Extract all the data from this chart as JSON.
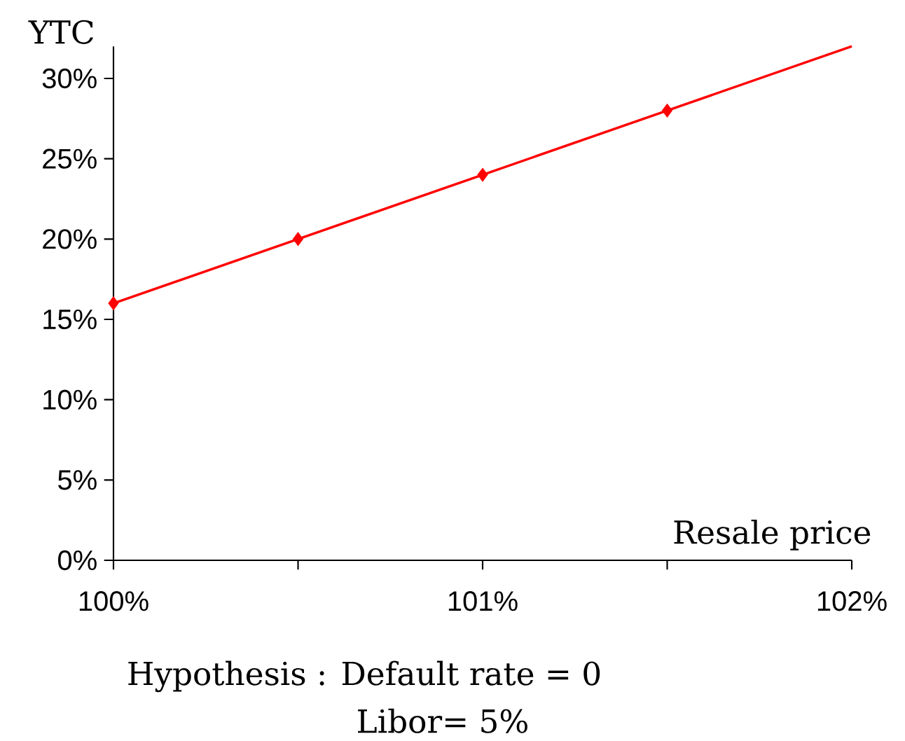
{
  "chart_data": {
    "type": "line",
    "xlabel": "Resale price",
    "ylabel": "YTC",
    "annotations": [
      "Hypothesis : Default rate = 0",
      "Libor= 5%"
    ],
    "series": [
      {
        "color": "#ff0000",
        "x": [
          100,
          100.5,
          101,
          101.5,
          102
        ],
        "values": [
          16,
          20,
          24,
          28,
          32
        ],
        "marker": "none"
      },
      {
        "type": "scatter",
        "color": "#ff0000",
        "x": [
          100,
          100.5,
          101,
          101.5
        ],
        "values": [
          16,
          20,
          24,
          28
        ],
        "marker": "diamond"
      }
    ],
    "xlim": [
      100,
      102
    ],
    "ylim": [
      0,
      32
    ],
    "xticks": [
      {
        "value": 100,
        "label": "100%"
      },
      {
        "value": 100.5,
        "label": null
      },
      {
        "value": 101,
        "label": "101%"
      },
      {
        "value": 101.5,
        "label": null
      },
      {
        "value": 102,
        "label": "102%"
      }
    ],
    "yticks": [
      {
        "value": 0,
        "label": "0%"
      },
      {
        "value": 5,
        "label": "5%"
      },
      {
        "value": 10,
        "label": "10%"
      },
      {
        "value": 15,
        "label": "15%"
      },
      {
        "value": 20,
        "label": "20%"
      },
      {
        "value": 25,
        "label": "25%"
      },
      {
        "value": 30,
        "label": "30%"
      }
    ],
    "grid": false
  }
}
